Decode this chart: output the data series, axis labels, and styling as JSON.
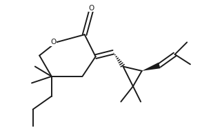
{
  "background": "#ffffff",
  "line_color": "#1a1a1a",
  "line_width": 1.4
}
